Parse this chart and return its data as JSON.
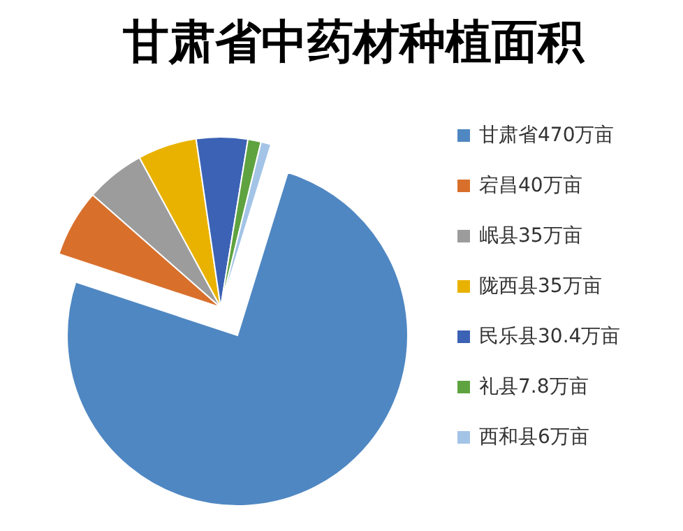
{
  "chart_data": {
    "type": "pie",
    "title": "甘肃省中药材种植面积",
    "categories": [
      "甘肃省470万亩",
      "宕昌40万亩",
      "岷县35万亩",
      "陇西县35万亩",
      "民乐县30.4万亩",
      "礼县7.8万亩",
      "西和县6万亩"
    ],
    "values": [
      470,
      40,
      35,
      35,
      30.4,
      7.8,
      6
    ],
    "colors": [
      "#4f87c2",
      "#d8702c",
      "#9c9c9c",
      "#e9b200",
      "#3b62b4",
      "#5fa340",
      "#a3c4e6"
    ],
    "legend": "right"
  }
}
